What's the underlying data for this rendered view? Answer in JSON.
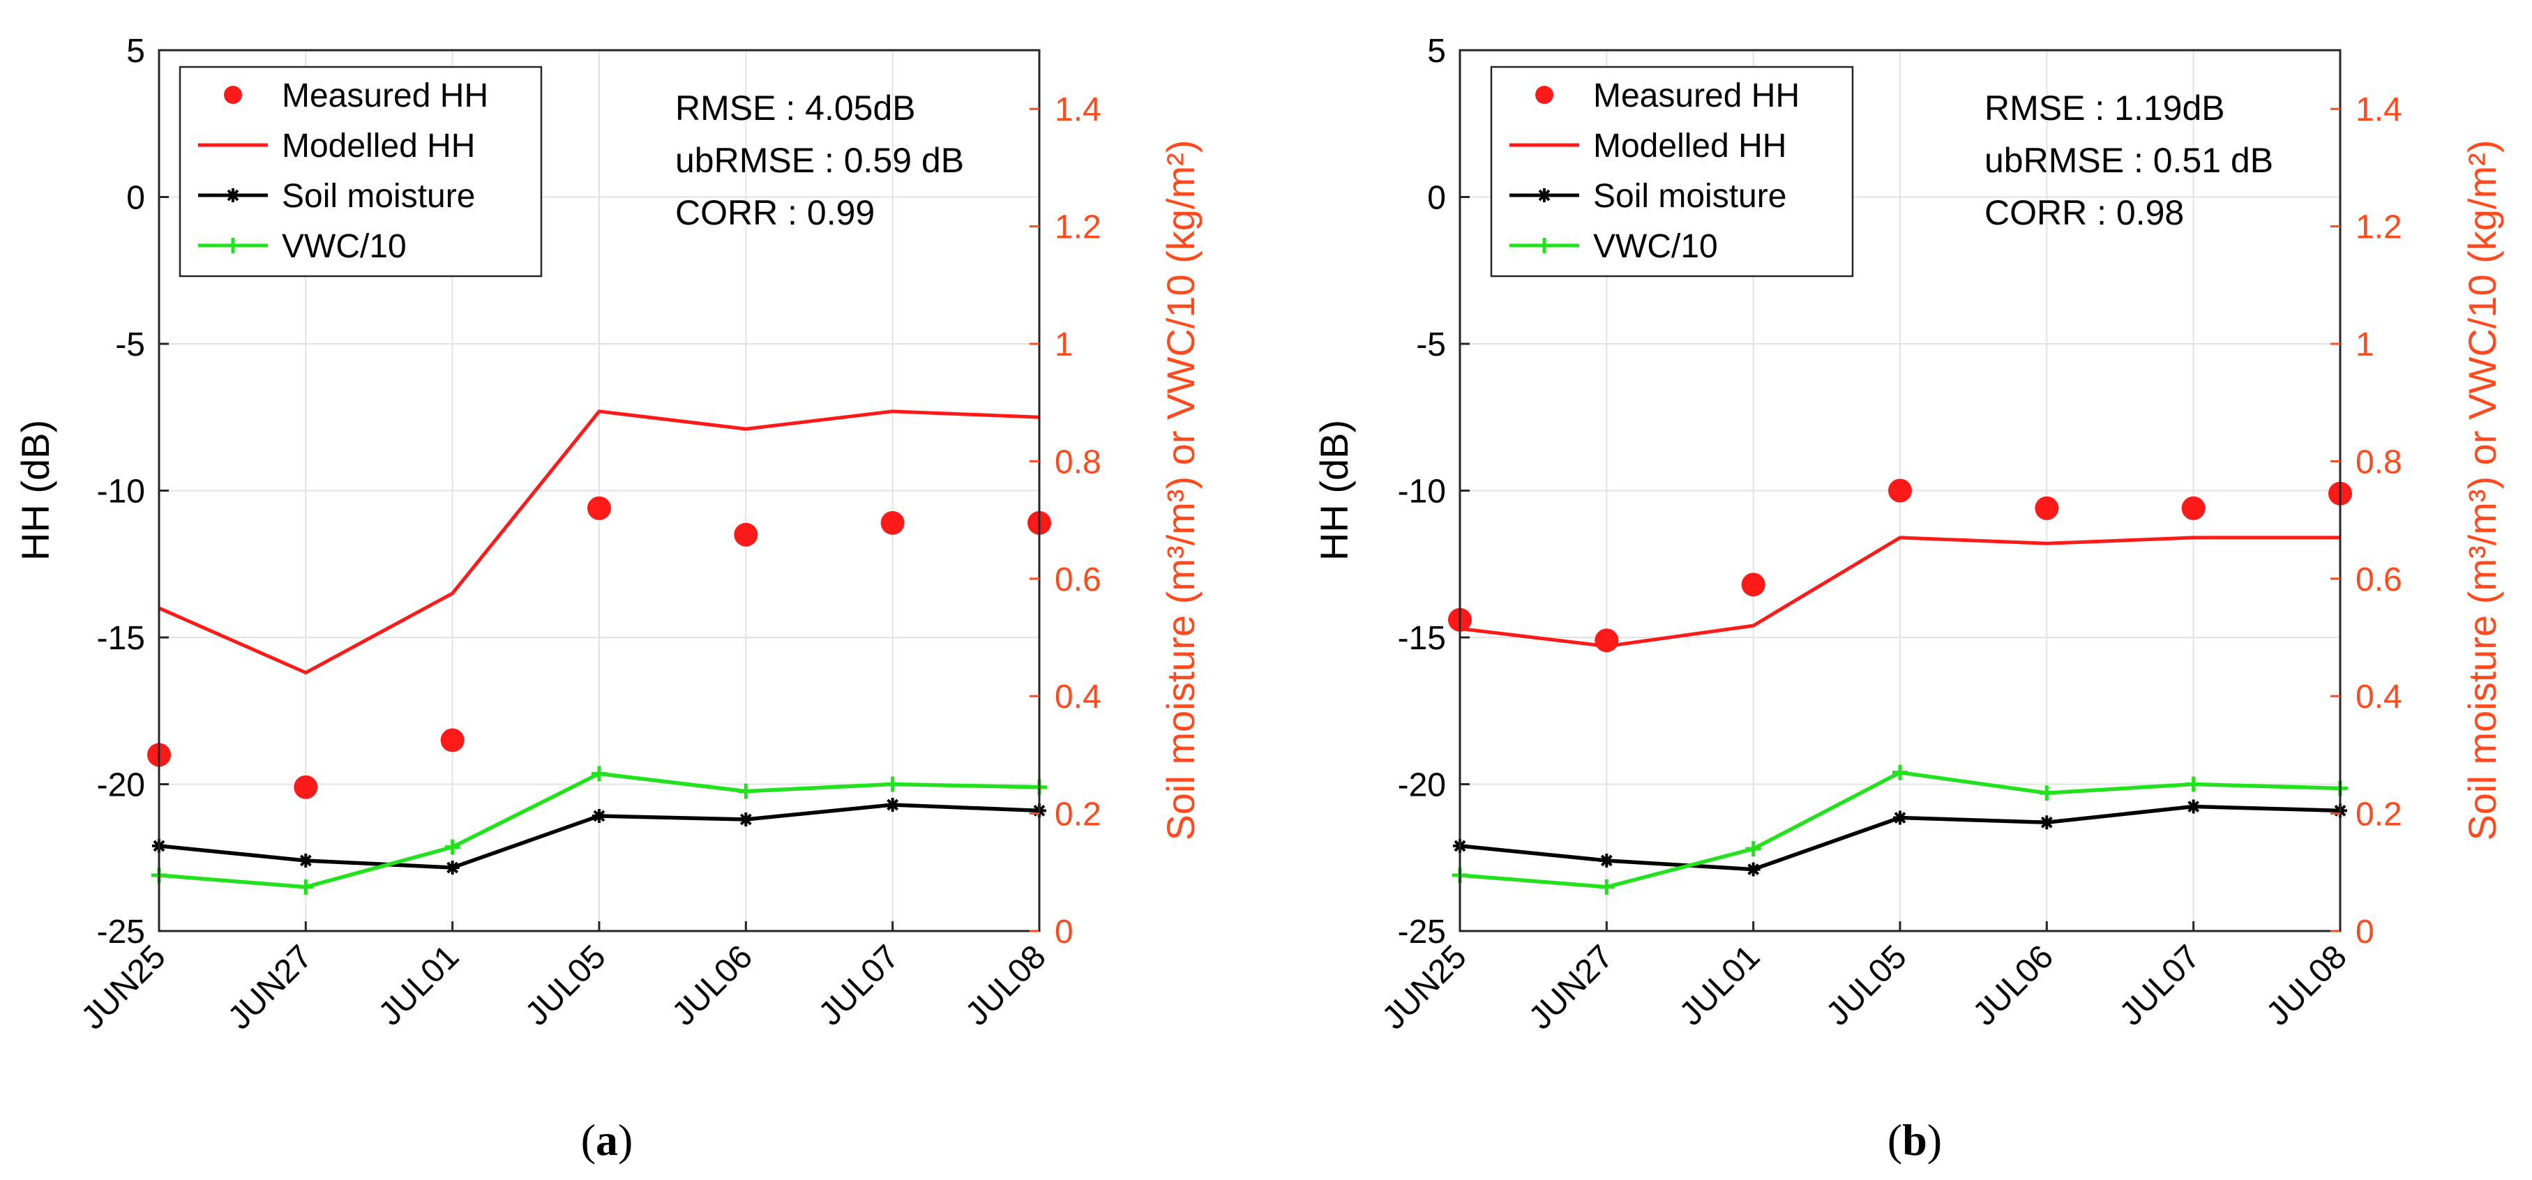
{
  "chart_data": [
    {
      "type": "line",
      "panel_label": "a",
      "categories": [
        "JUN25",
        "JUN27",
        "JUL01",
        "JUL05",
        "JUL06",
        "JUL07",
        "JUL08"
      ],
      "ylabel": "HH (dB)",
      "ylabel_right": "Soil moisture (m³/m³) or VWC/10 (kg/m²)",
      "ylim": [
        -25,
        5
      ],
      "yticks": [
        "5",
        "0",
        "-5",
        "-10",
        "-15",
        "-20",
        "-25"
      ],
      "ylim_right": [
        0,
        1.5
      ],
      "yticks_right": [
        "1.4",
        "1.2",
        "1",
        "0.8",
        "0.6",
        "0.4",
        "0.2",
        "0"
      ],
      "grid": true,
      "legend_position": "top-left",
      "stats": [
        "RMSE : 4.05dB",
        "ubRMSE : 0.59 dB",
        "CORR : 0.99"
      ],
      "series": [
        {
          "name": "Measured HH",
          "axis": "left",
          "style": "dots",
          "color": "#ff1a1a",
          "values": [
            -19.0,
            -20.1,
            -18.5,
            -10.6,
            -11.5,
            -11.1,
            -11.1
          ]
        },
        {
          "name": "Modelled HH",
          "axis": "left",
          "style": "line",
          "color": "#ff1a1a",
          "values": [
            -14.0,
            -16.2,
            -13.5,
            -7.3,
            -7.9,
            -7.3,
            -7.5
          ]
        },
        {
          "name": "Soil moisture",
          "axis": "right",
          "style": "line-star",
          "color": "#000000",
          "values": [
            0.145,
            0.12,
            0.108,
            0.196,
            0.19,
            0.215,
            0.205
          ]
        },
        {
          "name": "VWC/10",
          "axis": "right",
          "style": "line-plus",
          "color": "#22e11d",
          "values": [
            0.095,
            0.075,
            0.143,
            0.268,
            0.238,
            0.25,
            0.245
          ]
        }
      ]
    },
    {
      "type": "line",
      "panel_label": "b",
      "categories": [
        "JUN25",
        "JUN27",
        "JUL01",
        "JUL05",
        "JUL06",
        "JUL07",
        "JUL08"
      ],
      "ylabel": "HH (dB)",
      "ylabel_right": "Soil moisture (m³/m³) or VWC/10 (kg/m²)",
      "ylim": [
        -25,
        5
      ],
      "yticks": [
        "5",
        "0",
        "-5",
        "-10",
        "-15",
        "-20",
        "-25"
      ],
      "ylim_right": [
        0,
        1.5
      ],
      "yticks_right": [
        "1.4",
        "1.2",
        "1",
        "0.8",
        "0.6",
        "0.4",
        "0.2",
        "0"
      ],
      "grid": true,
      "legend_position": "top-left",
      "stats": [
        "RMSE : 1.19dB",
        "ubRMSE : 0.51 dB",
        "CORR : 0.98"
      ],
      "series": [
        {
          "name": "Measured HH",
          "axis": "left",
          "style": "dots",
          "color": "#ff1a1a",
          "values": [
            -14.4,
            -15.1,
            -13.2,
            -10.0,
            -10.6,
            -10.6,
            -10.1
          ]
        },
        {
          "name": "Modelled HH",
          "axis": "left",
          "style": "line",
          "color": "#ff1a1a",
          "values": [
            -14.7,
            -15.3,
            -14.6,
            -11.6,
            -11.8,
            -11.6,
            -11.6
          ]
        },
        {
          "name": "Soil moisture",
          "axis": "right",
          "style": "line-star",
          "color": "#000000",
          "values": [
            0.145,
            0.12,
            0.105,
            0.193,
            0.185,
            0.212,
            0.205
          ]
        },
        {
          "name": "VWC/10",
          "axis": "right",
          "style": "line-plus",
          "color": "#22e11d",
          "values": [
            0.095,
            0.075,
            0.14,
            0.27,
            0.235,
            0.25,
            0.243
          ]
        }
      ]
    }
  ],
  "captions": [
    {
      "open": "(",
      "label": "a",
      "close": ")"
    },
    {
      "open": "(",
      "label": "b",
      "close": ")"
    }
  ]
}
